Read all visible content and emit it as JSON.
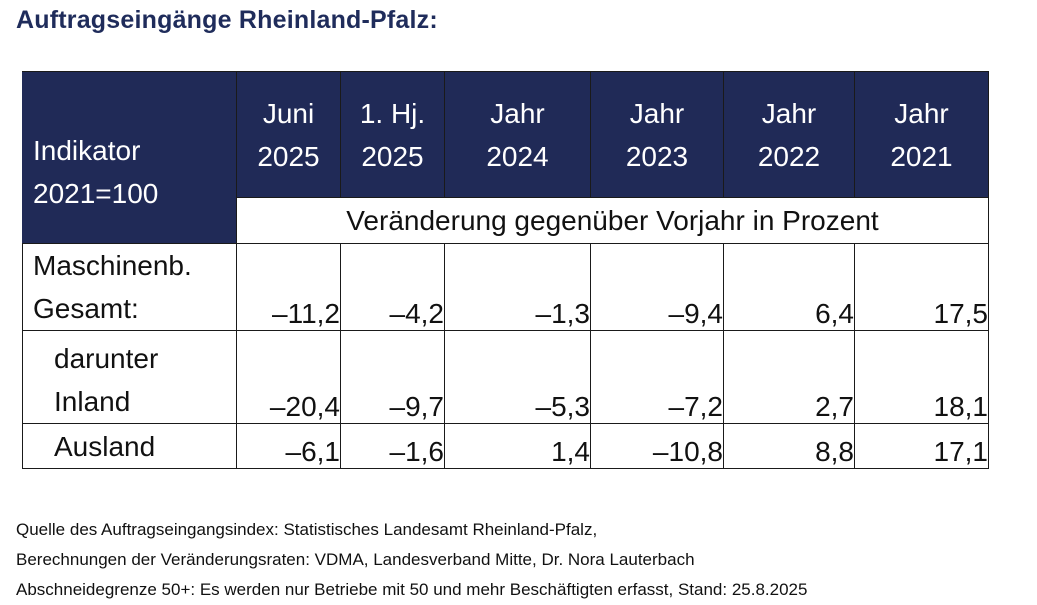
{
  "title": "Auftragseingänge Rheinland-Pfalz:",
  "table": {
    "header": {
      "indicator_line1": "Indikator",
      "indicator_line2": "2021=100",
      "columns": [
        {
          "line1": "Juni",
          "line2": "2025"
        },
        {
          "line1": "1. Hj.",
          "line2": "2025"
        },
        {
          "line1": "Jahr",
          "line2": "2024"
        },
        {
          "line1": "Jahr",
          "line2": "2023"
        },
        {
          "line1": "Jahr",
          "line2": "2022"
        },
        {
          "line1": "Jahr",
          "line2": "2021"
        }
      ]
    },
    "subheader": "Veränderung gegenüber Vorjahr in Prozent",
    "rows": [
      {
        "label_line1": "Maschinenb.",
        "label_line2": "Gesamt:",
        "values": [
          "–11,2",
          "–4,2",
          "–1,3",
          "–9,4",
          "6,4",
          "17,5"
        ]
      },
      {
        "label_line1": "darunter",
        "label_line2": "Inland",
        "values": [
          "–20,4",
          "–9,7",
          "–5,3",
          "–7,2",
          "2,7",
          "18,1"
        ]
      },
      {
        "label_line1": "Ausland",
        "values": [
          "–6,1",
          "–1,6",
          "1,4",
          "–10,8",
          "8,8",
          "17,1"
        ]
      }
    ]
  },
  "footer": {
    "line1": "Quelle des Auftragseingangsindex: Statistisches Landesamt Rheinland-Pfalz,",
    "line2": "Berechnungen der Veränderungsraten: VDMA, Landesverband Mitte, Dr. Nora Lauterbach",
    "line3": "Abschneidegrenze 50+: Es werden nur Betriebe mit 50 und mehr Beschäftigten erfasst, Stand: 25.8.2025"
  },
  "colors": {
    "title": "#1f2c5b",
    "header_bg": "#202a57",
    "header_text": "#ffffff"
  }
}
